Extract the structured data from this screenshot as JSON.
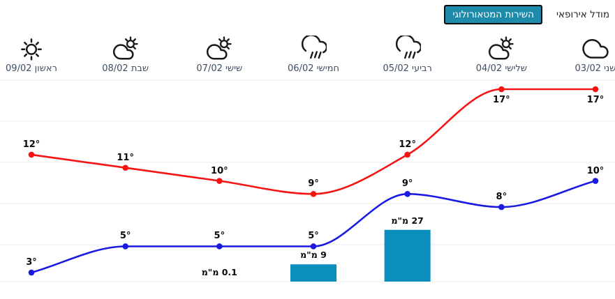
{
  "header": {
    "tabs": [
      {
        "label": "מודל אירופאי",
        "active": false
      },
      {
        "label": "השירות המטאורולוגי",
        "active": true
      }
    ]
  },
  "colors": {
    "high_line": "#f51414",
    "low_line": "#1a1ae0",
    "precip_bar": "#0a8fbd",
    "active_tab_bg": "#1d8ba9",
    "grid_line": "#ebebeb",
    "day_label": "#3f4e63",
    "temp_label": "#0a0a0a"
  },
  "chart_data": {
    "type": "line",
    "direction": "rtl",
    "title": "",
    "degree_suffix": "°",
    "precip_unit": "מ\"מ",
    "grid": true,
    "legend": false,
    "days": [
      {
        "name": "שני",
        "date": "03/02",
        "icon": "cloud-icon",
        "high": 17,
        "low": 10,
        "precip_mm": null
      },
      {
        "name": "שלישי",
        "date": "04/02",
        "icon": "sun-cloud-icon",
        "high": 17,
        "low": 8,
        "precip_mm": null
      },
      {
        "name": "רביעי",
        "date": "05/02",
        "icon": "rain-icon",
        "high": 12,
        "low": 9,
        "precip_mm": 27
      },
      {
        "name": "חמישי",
        "date": "06/02",
        "icon": "rain-icon",
        "high": 9,
        "low": 5,
        "precip_mm": 9
      },
      {
        "name": "שישי",
        "date": "07/02",
        "icon": "sun-cloud-icon",
        "high": 10,
        "low": 5,
        "precip_mm": 0.1
      },
      {
        "name": "שבת",
        "date": "08/02",
        "icon": "sun-cloud-icon",
        "high": 11,
        "low": 5,
        "precip_mm": null
      },
      {
        "name": "ראשון",
        "date": "09/02",
        "icon": "sun-icon",
        "high": 12,
        "low": 3,
        "precip_mm": null
      }
    ],
    "series": [
      {
        "name": "high-temp",
        "color_key": "high_line",
        "values": [
          17,
          17,
          12,
          9,
          10,
          11,
          12
        ]
      },
      {
        "name": "low-temp",
        "color_key": "low_line",
        "values": [
          10,
          8,
          9,
          5,
          5,
          5,
          3
        ]
      }
    ]
  }
}
